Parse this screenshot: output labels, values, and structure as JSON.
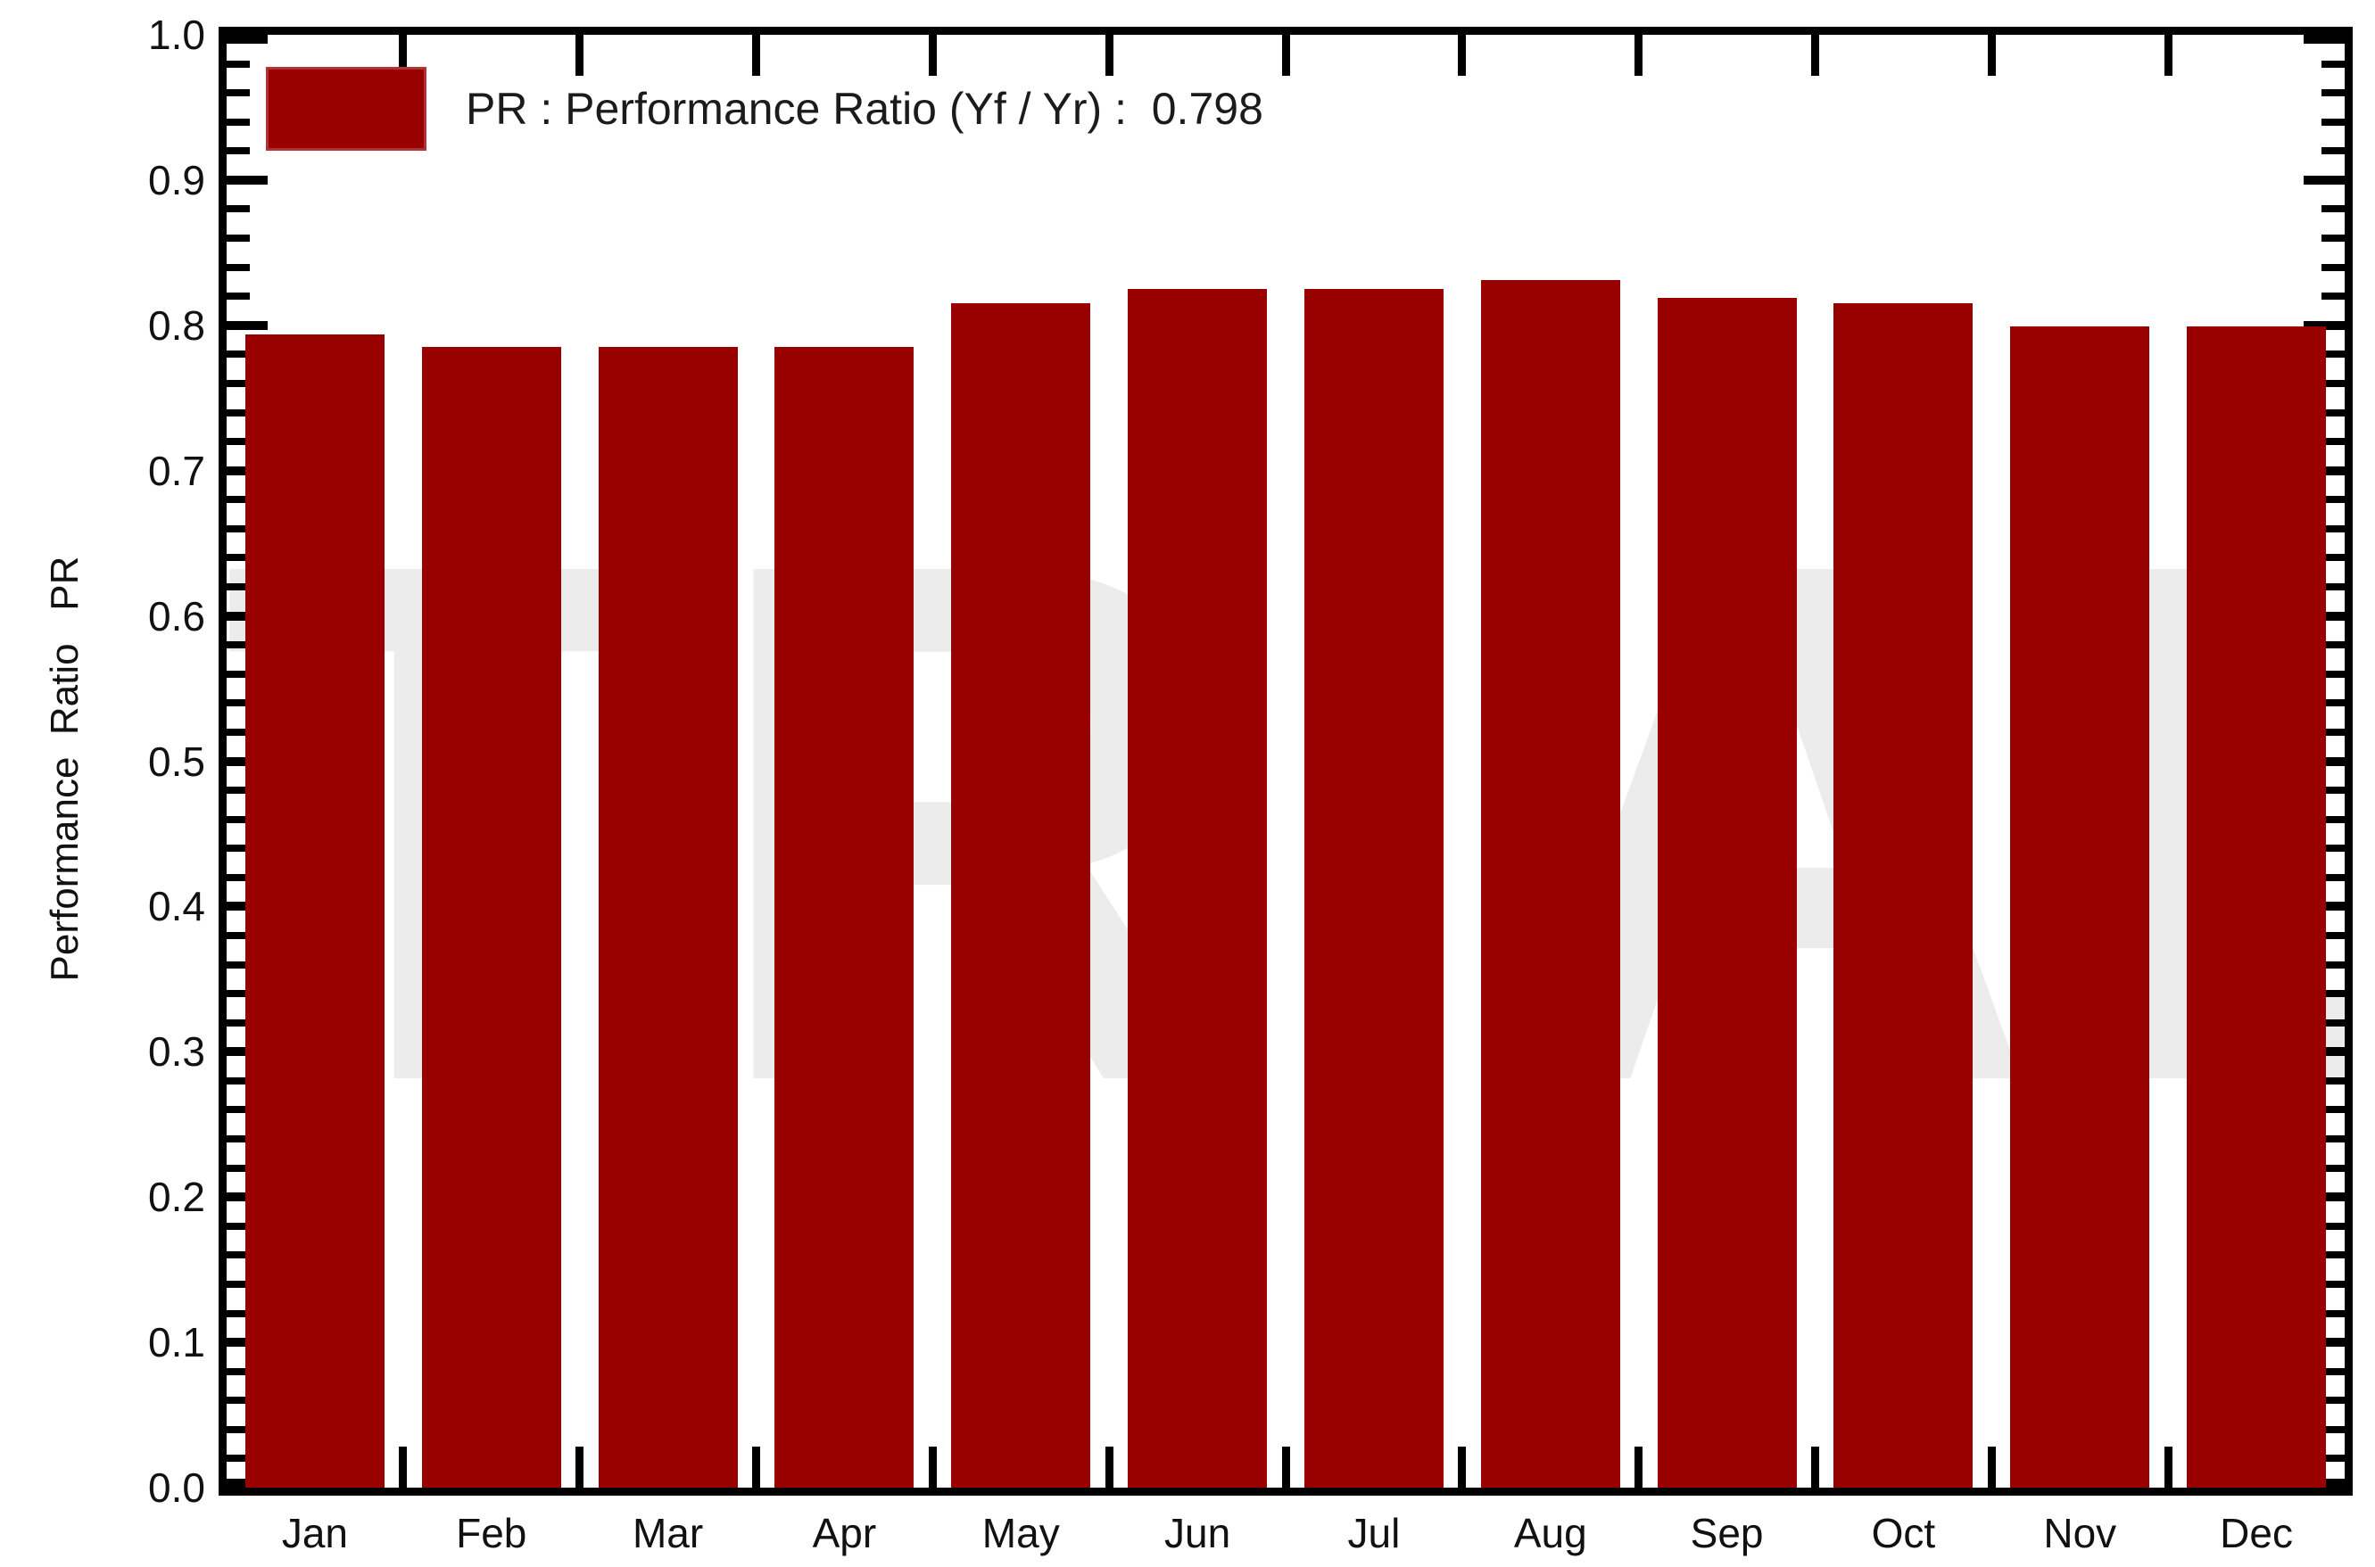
{
  "chart_data": {
    "type": "bar",
    "title": "",
    "xlabel": "",
    "ylabel": "Performance  Ratio   PR",
    "categories": [
      "Jan",
      "Feb",
      "Mar",
      "Apr",
      "May",
      "Jun",
      "Jul",
      "Aug",
      "Sep",
      "Oct",
      "Nov",
      "Dec"
    ],
    "series": [
      {
        "name": "PR",
        "values": [
          0.794,
          0.785,
          0.785,
          0.785,
          0.815,
          0.825,
          0.825,
          0.831,
          0.819,
          0.815,
          0.799,
          0.799
        ]
      }
    ],
    "legend_entries": [
      {
        "label": "PR : Performance Ratio (Yf / Yr) :  0.798",
        "swatch_color": "#990000"
      }
    ],
    "annual_performance_ratio": "0.798",
    "ylim": [
      0.0,
      1.0
    ],
    "ytick_step": 0.1,
    "ytick_decimals": 1,
    "minor_tick_step": 0.02,
    "grid": false,
    "legend_position": "top-left",
    "bar_color": "#990000",
    "axis_color": "#000000",
    "text_color": "#111111"
  },
  "watermark": {
    "text": "TRIAL",
    "color": "#ececec"
  }
}
